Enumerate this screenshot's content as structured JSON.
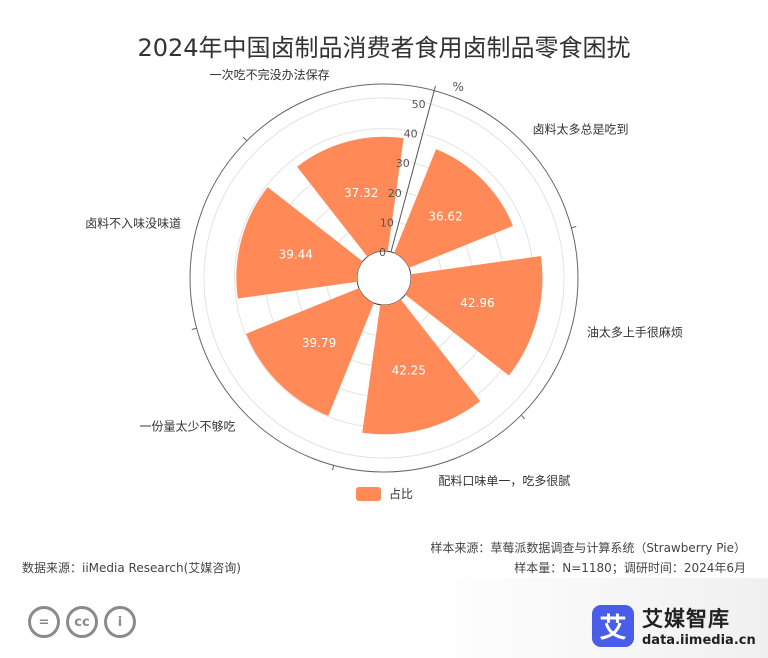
{
  "title": "2024年中国卤制品消费者食用卤制品零食困扰",
  "chart_data": {
    "type": "bar",
    "subtype": "polar-bar",
    "categories": [
      "卤料太多总是吃到",
      "油太多上手很麻烦",
      "配料口味单一，吃多很腻",
      "一份量太少不够吃",
      "卤料不入味没味道",
      "一次吃不完没办法保存"
    ],
    "series": [
      {
        "name": "占比",
        "values": [
          36.62,
          42.96,
          42.25,
          39.79,
          39.44,
          37.32
        ],
        "color": "#ff8a58"
      }
    ],
    "rlim": [
      0,
      50
    ],
    "radial_ticks": [
      "0",
      "10",
      "20",
      "30",
      "40",
      "50"
    ],
    "unit": "%",
    "legend": "bottom"
  },
  "footer": {
    "source": "数据来源：iiMedia Research(艾媒咨询)",
    "sample_source": "样本来源：草莓派数据调查与计算系统（Strawberry Pie）",
    "sample_info": "样本量：N=1180；调研时间：2024年6月"
  },
  "brand": {
    "mark": "艾",
    "name": "艾媒智库",
    "url": "data.iimedia.cn"
  },
  "license_icons": [
    "equals-icon",
    "cc-icon",
    "person-icon"
  ],
  "license_glyphs": [
    "=",
    "cc",
    "i"
  ]
}
